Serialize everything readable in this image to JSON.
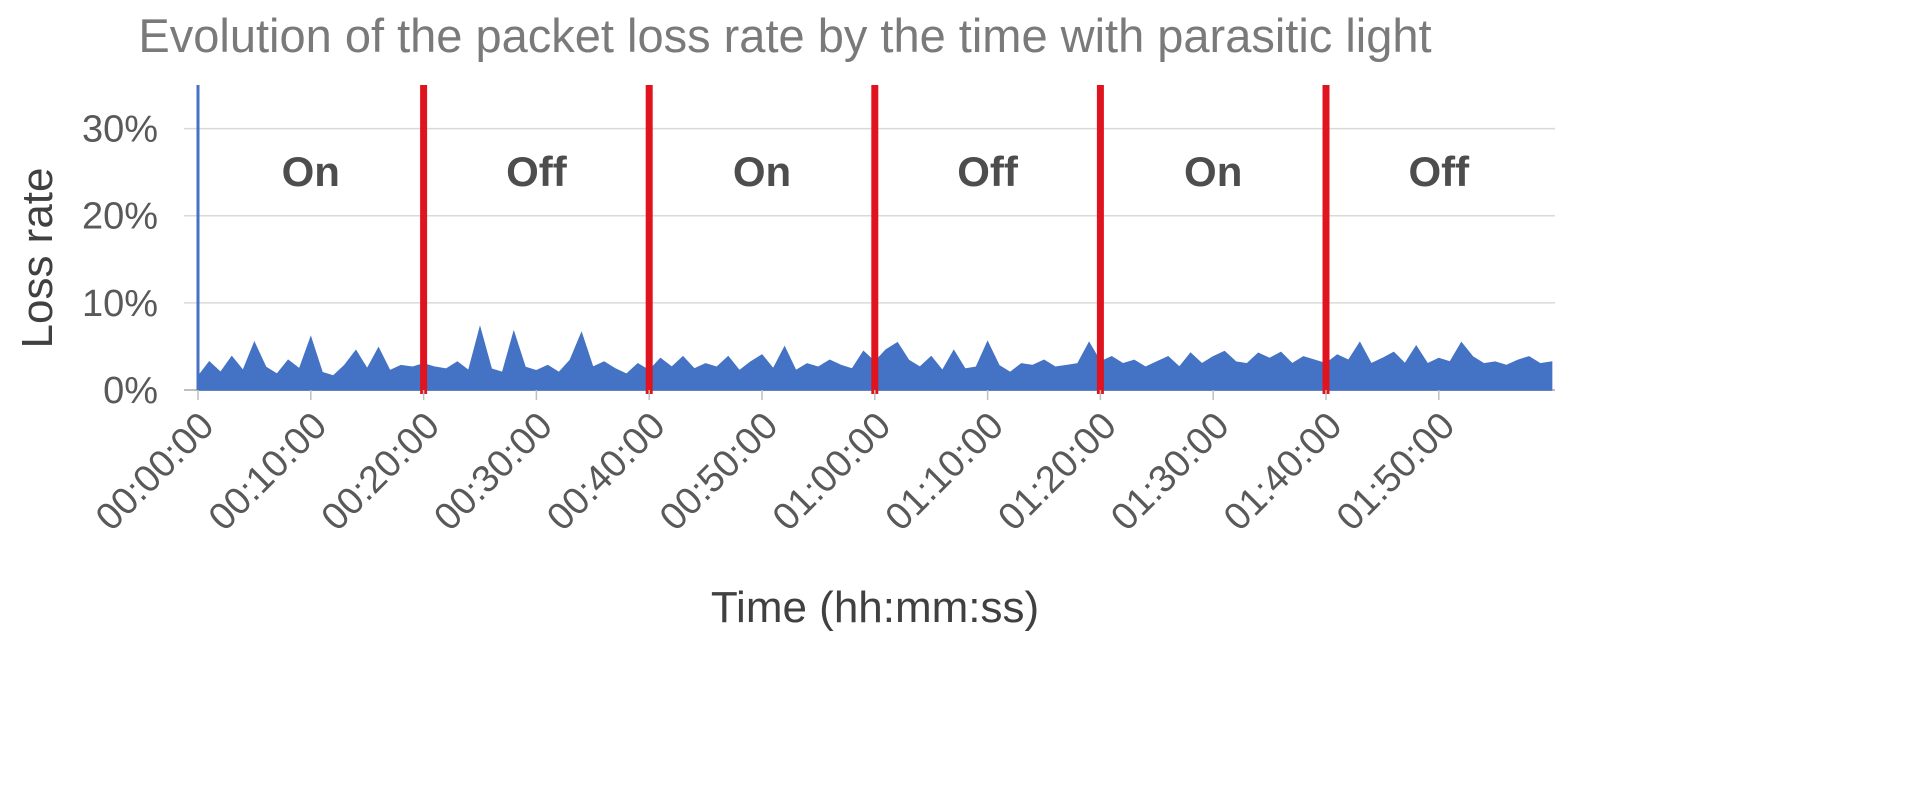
{
  "chart_data": {
    "type": "area",
    "title": "Evolution of the packet loss rate by the time with parasitic light",
    "xlabel": "Time (hh:mm:ss)",
    "ylabel": "Loss rate",
    "x_unit": "minutes",
    "xlim": [
      0,
      120
    ],
    "ylim": [
      0,
      35
    ],
    "y_ticks": [
      0,
      10,
      20,
      30
    ],
    "y_tick_labels": [
      "0%",
      "10%",
      "20%",
      "30%"
    ],
    "x_ticks": [
      0,
      10,
      20,
      30,
      40,
      50,
      60,
      70,
      80,
      90,
      100,
      110
    ],
    "x_tick_labels": [
      "00:00:00",
      "00:10:00",
      "00:20:00",
      "00:30:00",
      "00:40:00",
      "00:50:00",
      "01:00:00",
      "01:10:00",
      "01:20:00",
      "01:30:00",
      "01:40:00",
      "01:50:00"
    ],
    "grid": true,
    "series_color": "#4472c4",
    "boundary_color": "#e0141e",
    "phase_boundaries": [
      20,
      40,
      60,
      80,
      100
    ],
    "phases": [
      {
        "label": "On",
        "start": 0,
        "end": 20
      },
      {
        "label": "Off",
        "start": 20,
        "end": 40
      },
      {
        "label": "On",
        "start": 40,
        "end": 60
      },
      {
        "label": "Off",
        "start": 60,
        "end": 80
      },
      {
        "label": "On",
        "start": 80,
        "end": 100
      },
      {
        "label": "Off",
        "start": 100,
        "end": 120
      }
    ],
    "series": [
      {
        "x": [
          0,
          1,
          2,
          3,
          4,
          5,
          6,
          7,
          8,
          9,
          10,
          11,
          12,
          13,
          14,
          15,
          16,
          17,
          18,
          19,
          20,
          21,
          22,
          23,
          24,
          25,
          26,
          27,
          28,
          29,
          30,
          31,
          32,
          33,
          34,
          35,
          36,
          37,
          38,
          39,
          40,
          41,
          42,
          43,
          44,
          45,
          46,
          47,
          48,
          49,
          50,
          51,
          52,
          53,
          54,
          55,
          56,
          57,
          58,
          59,
          60,
          61,
          62,
          63,
          64,
          65,
          66,
          67,
          68,
          69,
          70,
          71,
          72,
          73,
          74,
          75,
          76,
          77,
          78,
          79,
          80,
          81,
          82,
          83,
          84,
          85,
          86,
          87,
          88,
          89,
          90,
          91,
          92,
          93,
          94,
          95,
          96,
          97,
          98,
          99,
          100,
          101,
          102,
          103,
          104,
          105,
          106,
          107,
          108,
          109,
          110,
          111,
          112,
          113,
          114,
          115,
          116,
          117,
          118,
          119,
          120
        ],
        "y": [
          1.5,
          3.2,
          2.0,
          3.8,
          2.2,
          5.4,
          2.6,
          1.8,
          3.4,
          2.4,
          6.0,
          2.0,
          1.6,
          2.8,
          4.5,
          2.4,
          4.8,
          2.2,
          2.8,
          2.6,
          3.0,
          2.6,
          2.4,
          3.2,
          2.2,
          7.1,
          2.4,
          2.0,
          6.6,
          2.6,
          2.2,
          2.8,
          2.0,
          3.4,
          6.5,
          2.6,
          3.2,
          2.4,
          1.8,
          3.0,
          2.2,
          3.6,
          2.6,
          3.8,
          2.4,
          3.0,
          2.6,
          3.8,
          2.2,
          3.2,
          4.0,
          2.4,
          4.9,
          2.2,
          3.0,
          2.6,
          3.4,
          2.8,
          2.4,
          4.4,
          3.2,
          4.6,
          5.4,
          3.4,
          2.6,
          3.8,
          2.2,
          4.5,
          2.4,
          2.6,
          5.5,
          2.8,
          2.0,
          3.0,
          2.8,
          3.4,
          2.6,
          2.8,
          3.0,
          5.4,
          3.2,
          3.8,
          3.0,
          3.4,
          2.6,
          3.2,
          3.8,
          2.6,
          4.2,
          3.0,
          3.8,
          4.4,
          3.2,
          3.0,
          4.2,
          3.6,
          4.3,
          3.0,
          3.8,
          3.4,
          3.0,
          4.0,
          3.4,
          5.4,
          3.0,
          3.6,
          4.3,
          3.0,
          5.0,
          3.0,
          3.6,
          3.2,
          5.4,
          3.8,
          3.0,
          3.2,
          2.8,
          3.4,
          3.8,
          3.0,
          3.2
        ]
      }
    ]
  }
}
